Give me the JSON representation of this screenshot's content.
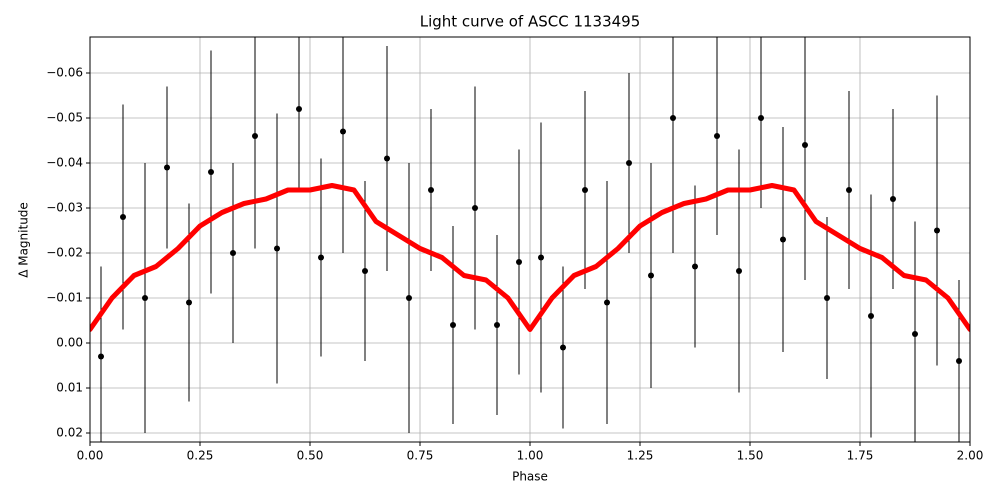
{
  "chart_data": {
    "type": "scatter",
    "title": "Light curve of ASCC 1133495",
    "xlabel": "Phase",
    "ylabel": "Δ Magnitude",
    "xlim": [
      0,
      2
    ],
    "ylim": [
      0.022,
      -0.068
    ],
    "xticks": [
      {
        "value": 0,
        "label": "0.00"
      },
      {
        "value": 0.25,
        "label": "0.25"
      },
      {
        "value": 0.5,
        "label": "0.50"
      },
      {
        "value": 0.75,
        "label": "0.75"
      },
      {
        "value": 1,
        "label": "1.00"
      },
      {
        "value": 1.25,
        "label": "1.25"
      },
      {
        "value": 1.5,
        "label": "1.50"
      },
      {
        "value": 1.75,
        "label": "1.75"
      },
      {
        "value": 2,
        "label": "2.00"
      }
    ],
    "yticks": [
      {
        "value": -0.06,
        "label": "−0.06"
      },
      {
        "value": -0.05,
        "label": "−0.05"
      },
      {
        "value": -0.04,
        "label": "−0.04"
      },
      {
        "value": -0.03,
        "label": "−0.03"
      },
      {
        "value": -0.02,
        "label": "−0.02"
      },
      {
        "value": -0.01,
        "label": "−0.01"
      },
      {
        "value": 0,
        "label": "0.00"
      },
      {
        "value": 0.01,
        "label": "0.01"
      },
      {
        "value": 0.02,
        "label": "0.02"
      }
    ],
    "grid": true,
    "points": {
      "color": "#000000",
      "x": [
        0.025,
        0.075,
        0.125,
        0.175,
        0.225,
        0.275,
        0.325,
        0.375,
        0.425,
        0.475,
        0.525,
        0.575,
        0.625,
        0.675,
        0.725,
        0.775,
        0.825,
        0.875,
        0.925,
        0.975,
        1.025,
        1.075,
        1.125,
        1.175,
        1.225,
        1.275,
        1.325,
        1.375,
        1.425,
        1.475,
        1.525,
        1.575,
        1.625,
        1.675,
        1.725,
        1.775,
        1.825,
        1.875,
        1.925,
        1.975
      ],
      "values": [
        0.003,
        -0.028,
        -0.01,
        -0.039,
        -0.009,
        -0.038,
        -0.02,
        -0.046,
        -0.021,
        -0.052,
        -0.019,
        -0.047,
        -0.016,
        -0.041,
        -0.01,
        -0.034,
        -0.004,
        -0.03,
        -0.004,
        -0.018,
        -0.019,
        0.001,
        -0.034,
        -0.009,
        -0.04,
        -0.015,
        -0.05,
        -0.017,
        -0.046,
        -0.016,
        -0.05,
        -0.023,
        -0.044,
        -0.01,
        -0.034,
        -0.006,
        -0.032,
        -0.002,
        -0.025,
        0.004
      ],
      "errors": [
        0.02,
        0.025,
        0.03,
        0.018,
        0.022,
        0.027,
        0.02,
        0.025,
        0.03,
        0.018,
        0.022,
        0.027,
        0.02,
        0.025,
        0.03,
        0.018,
        0.022,
        0.027,
        0.02,
        0.025,
        0.03,
        0.018,
        0.022,
        0.027,
        0.02,
        0.025,
        0.03,
        0.018,
        0.022,
        0.027,
        0.02,
        0.025,
        0.03,
        0.018,
        0.022,
        0.027,
        0.02,
        0.025,
        0.03,
        0.018
      ]
    },
    "curve": {
      "color": "#ff0000",
      "x": [
        0,
        0.05,
        0.1,
        0.15,
        0.2,
        0.25,
        0.3,
        0.35,
        0.4,
        0.45,
        0.5,
        0.55,
        0.6,
        0.65,
        0.7,
        0.75,
        0.8,
        0.85,
        0.9,
        0.95,
        1,
        1.05,
        1.1,
        1.15,
        1.2,
        1.25,
        1.3,
        1.35,
        1.4,
        1.45,
        1.5,
        1.55,
        1.6,
        1.65,
        1.7,
        1.75,
        1.8,
        1.85,
        1.9,
        1.95,
        2
      ],
      "values": [
        -0.003,
        -0.01,
        -0.015,
        -0.017,
        -0.021,
        -0.026,
        -0.029,
        -0.031,
        -0.032,
        -0.034,
        -0.034,
        -0.035,
        -0.034,
        -0.027,
        -0.024,
        -0.021,
        -0.019,
        -0.015,
        -0.014,
        -0.01,
        -0.003,
        -0.01,
        -0.015,
        -0.017,
        -0.021,
        -0.026,
        -0.029,
        -0.031,
        -0.032,
        -0.034,
        -0.034,
        -0.035,
        -0.034,
        -0.027,
        -0.024,
        -0.021,
        -0.019,
        -0.015,
        -0.014,
        -0.01,
        -0.003
      ]
    }
  }
}
